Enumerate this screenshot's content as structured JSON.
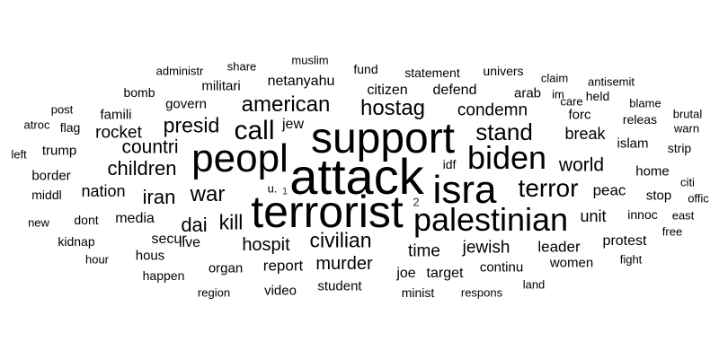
{
  "words": [
    {
      "text": "attack",
      "size": 56
    },
    {
      "text": "terrorist",
      "size": 50
    },
    {
      "text": "support",
      "size": 48
    },
    {
      "text": "peopl",
      "size": 44
    },
    {
      "text": "isra",
      "size": 44
    },
    {
      "text": "palestinian",
      "size": 36
    },
    {
      "text": "biden",
      "size": 36
    },
    {
      "text": "call",
      "size": 30
    },
    {
      "text": "terror",
      "size": 28
    },
    {
      "text": "stand",
      "size": 26
    },
    {
      "text": "american",
      "size": 24
    },
    {
      "text": "hostag",
      "size": 24
    },
    {
      "text": "war",
      "size": 24
    },
    {
      "text": "presid",
      "size": 23
    },
    {
      "text": "kill",
      "size": 23
    },
    {
      "text": "civilian",
      "size": 23
    },
    {
      "text": "children",
      "size": 22
    },
    {
      "text": "iran",
      "size": 22
    },
    {
      "text": "dai",
      "size": 22
    },
    {
      "text": "countri",
      "size": 21
    },
    {
      "text": "world",
      "size": 21
    },
    {
      "text": "hospit",
      "size": 20
    },
    {
      "text": "murder",
      "size": 20
    },
    {
      "text": "rocket",
      "size": 19
    },
    {
      "text": "condemn",
      "size": 19
    },
    {
      "text": "time",
      "size": 19
    },
    {
      "text": "jewish",
      "size": 19
    },
    {
      "text": "break",
      "size": 18
    },
    {
      "text": "nation",
      "size": 18
    },
    {
      "text": "unit",
      "size": 18
    },
    {
      "text": "peac",
      "size": 17
    },
    {
      "text": "report",
      "size": 17
    },
    {
      "text": "leader",
      "size": 17
    },
    {
      "text": "netanyahu",
      "size": 16
    },
    {
      "text": "media",
      "size": 16
    },
    {
      "text": "defend",
      "size": 16
    },
    {
      "text": "citizen",
      "size": 16
    },
    {
      "text": "jew",
      "size": 16
    },
    {
      "text": "secur",
      "size": 16
    },
    {
      "text": "live",
      "size": 16
    },
    {
      "text": "protest",
      "size": 16
    },
    {
      "text": "target",
      "size": 16
    },
    {
      "text": "joe",
      "size": 16
    },
    {
      "text": "continu",
      "size": 15
    },
    {
      "text": "home",
      "size": 15
    },
    {
      "text": "islam",
      "size": 15
    },
    {
      "text": "forc",
      "size": 15
    },
    {
      "text": "stop",
      "size": 15
    },
    {
      "text": "organ",
      "size": 15
    },
    {
      "text": "trump",
      "size": 15
    },
    {
      "text": "border",
      "size": 15
    },
    {
      "text": "famili",
      "size": 15
    },
    {
      "text": "militari",
      "size": 15
    },
    {
      "text": "govern",
      "size": 15
    },
    {
      "text": "arab",
      "size": 15
    },
    {
      "text": "women",
      "size": 15
    },
    {
      "text": "student",
      "size": 15
    },
    {
      "text": "video",
      "size": 15
    },
    {
      "text": "hous",
      "size": 15
    },
    {
      "text": "dont",
      "size": 14
    },
    {
      "text": "happen",
      "size": 14
    },
    {
      "text": "kidnap",
      "size": 14
    },
    {
      "text": "statement",
      "size": 14
    },
    {
      "text": "univers",
      "size": 14
    },
    {
      "text": "releas",
      "size": 14
    },
    {
      "text": "held",
      "size": 14
    },
    {
      "text": "strip",
      "size": 14
    },
    {
      "text": "innoc",
      "size": 14
    },
    {
      "text": "fund",
      "size": 14
    },
    {
      "text": "minist",
      "size": 14
    },
    {
      "text": "idf",
      "size": 14
    },
    {
      "text": "flag",
      "size": 14
    },
    {
      "text": "bomb",
      "size": 14
    },
    {
      "text": "middl",
      "size": 14
    },
    {
      "text": "post",
      "size": 13
    },
    {
      "text": "atroc",
      "size": 13
    },
    {
      "text": "left",
      "size": 13
    },
    {
      "text": "new",
      "size": 13
    },
    {
      "text": "hour",
      "size": 13
    },
    {
      "text": "region",
      "size": 13
    },
    {
      "text": "respons",
      "size": 13
    },
    {
      "text": "land",
      "size": 13
    },
    {
      "text": "fight",
      "size": 13
    },
    {
      "text": "free",
      "size": 13
    },
    {
      "text": "east",
      "size": 13
    },
    {
      "text": "offic",
      "size": 13
    },
    {
      "text": "citi",
      "size": 13
    },
    {
      "text": "warn",
      "size": 13
    },
    {
      "text": "brutal",
      "size": 13
    },
    {
      "text": "blame",
      "size": 13
    },
    {
      "text": "care",
      "size": 13
    },
    {
      "text": "im",
      "size": 13
    },
    {
      "text": "claim",
      "size": 13
    },
    {
      "text": "antisemit",
      "size": 13
    },
    {
      "text": "muslim",
      "size": 13
    },
    {
      "text": "share",
      "size": 13
    },
    {
      "text": "administr",
      "size": 13
    },
    {
      "text": "u.",
      "size": 13
    },
    {
      "text": "1",
      "size": 11
    },
    {
      "text": "2",
      "size": 13
    }
  ]
}
